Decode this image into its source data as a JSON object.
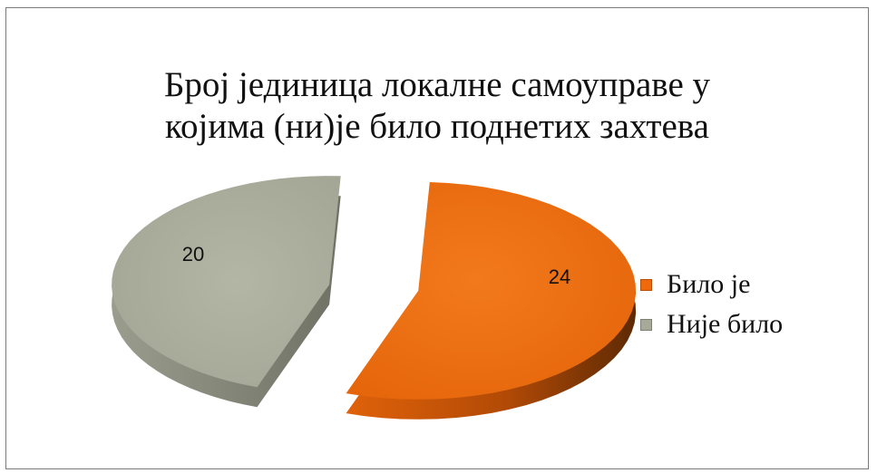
{
  "chart_data": {
    "type": "pie",
    "title": [
      "Број јединица локалне самоуправе у",
      "којима (ни)је било поднетих захтева"
    ],
    "categories": [
      "Било је",
      "Није било"
    ],
    "values": [
      24,
      20
    ],
    "colors": [
      "#ee6a0c",
      "#a7aa99"
    ],
    "data_labels": [
      "24",
      "20"
    ],
    "style": "3d-exploded",
    "legend_position": "right"
  }
}
